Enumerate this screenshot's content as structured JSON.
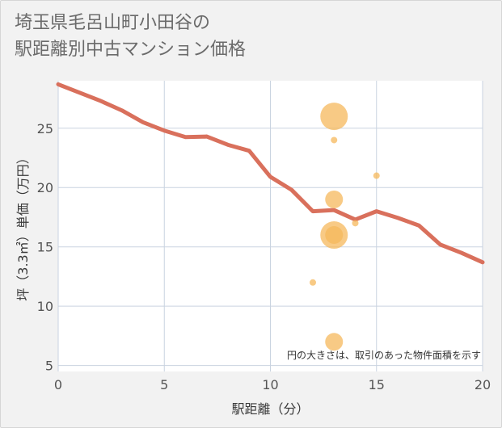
{
  "title_line1": "埼玉県毛呂山町小田谷の",
  "title_line2": "駅距離別中古マンション価格",
  "colors": {
    "line": "#d9705c",
    "bubble": "#f5b85c",
    "grid": "#c9d3e0",
    "plot_bg": "#ffffff",
    "frame_bg": "#f2f2f2"
  },
  "chart_data": {
    "type": "scatter",
    "xlabel": "駅距離（分）",
    "ylabel": "坪（3.3㎡）単価（万円）",
    "xlim": [
      0,
      20
    ],
    "ylim": [
      4.5,
      29
    ],
    "x_ticks": [
      0,
      5,
      10,
      15,
      20
    ],
    "y_ticks": [
      5,
      10,
      15,
      20,
      25
    ],
    "grid": true,
    "note": "円の大きさは、取引のあった物件面積を示す",
    "line": {
      "x": [
        0,
        1,
        2,
        3,
        4,
        5,
        6,
        7,
        8,
        9,
        10,
        11,
        12,
        13,
        14,
        15,
        16,
        17,
        18,
        19,
        20
      ],
      "y": [
        28.7,
        28.0,
        27.3,
        26.5,
        25.5,
        24.8,
        24.25,
        24.3,
        23.6,
        23.1,
        20.9,
        19.8,
        18.0,
        18.1,
        17.3,
        18.0,
        17.45,
        16.8,
        15.2,
        14.5,
        13.7
      ]
    },
    "bubbles": [
      {
        "x": 13,
        "y": 26,
        "size": 3
      },
      {
        "x": 13,
        "y": 24,
        "size": 1
      },
      {
        "x": 15,
        "y": 21,
        "size": 1
      },
      {
        "x": 13,
        "y": 19,
        "size": 2
      },
      {
        "x": 13,
        "y": 16,
        "size": 3
      },
      {
        "x": 13,
        "y": 16,
        "size": 2
      },
      {
        "x": 14,
        "y": 17,
        "size": 1
      },
      {
        "x": 12,
        "y": 12,
        "size": 1
      },
      {
        "x": 13,
        "y": 7,
        "size": 2
      }
    ]
  }
}
